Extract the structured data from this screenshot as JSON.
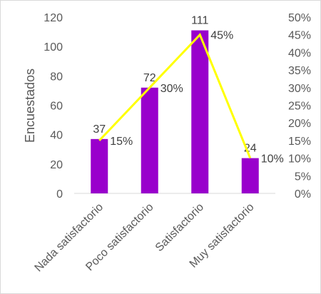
{
  "chart_data": {
    "type": "bar",
    "title": "",
    "xlabel": "",
    "ylabel": "Encuestados",
    "categories": [
      "Nada satisfactorio",
      "Poco satisfactorio",
      "Satisfactorio",
      "Muy satisfactorio"
    ],
    "ylim": [
      0,
      120
    ],
    "y_ticks": [
      "0",
      "20",
      "40",
      "60",
      "80",
      "100",
      "120"
    ],
    "y2lim": [
      0,
      0.5
    ],
    "y2_ticks": [
      "0%",
      "5%",
      "10%",
      "15%",
      "20%",
      "25%",
      "30%",
      "35%",
      "40%",
      "45%",
      "50%"
    ],
    "grid": false,
    "legend": "none",
    "series": [
      {
        "type": "bar",
        "axis": "left",
        "values": [
          37,
          72,
          111,
          24
        ],
        "labels": [
          "37",
          "72",
          "111",
          "24"
        ],
        "color": "#9900cc"
      },
      {
        "type": "line",
        "axis": "right",
        "values": [
          0.15,
          0.3,
          0.45,
          0.1
        ],
        "labels": [
          "15%",
          "30%",
          "45%",
          "10%"
        ],
        "color": "#ffff00"
      }
    ]
  }
}
